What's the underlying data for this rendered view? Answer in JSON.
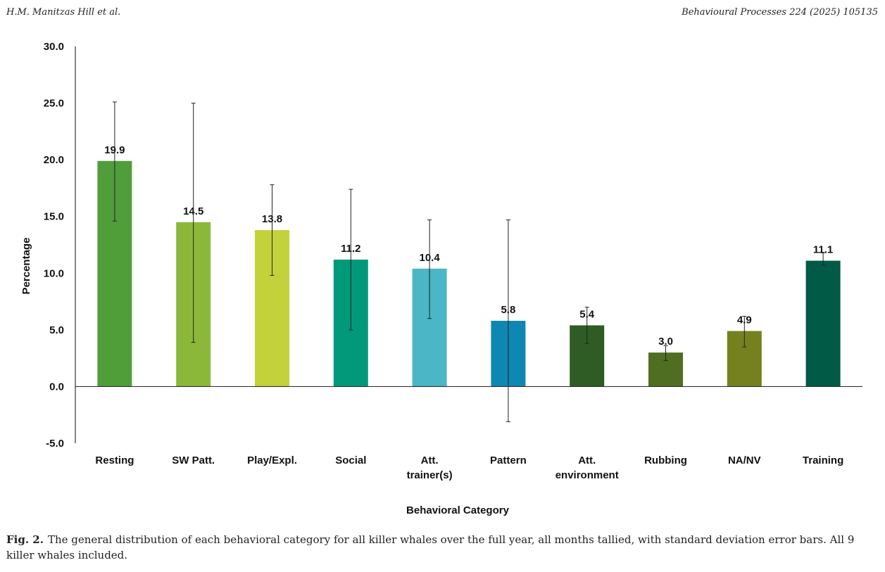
{
  "header": {
    "left": "H.M. Manitzas Hill et al.",
    "right": "Behavioural Processes 224 (2025) 105135"
  },
  "caption": {
    "label": "Fig. 2.",
    "text": "The general distribution of each behavioral category for all killer whales over the full year, all months tallied, with standard deviation error bars. All 9 killer whales included."
  },
  "chart_data": {
    "type": "bar",
    "xlabel": "Behavioral Category",
    "ylabel": "Percentage",
    "ylim": [
      -5,
      30
    ],
    "yticks": [
      "30.0",
      "25.0",
      "20.0",
      "15.0",
      "10.0",
      "5.0",
      "0.0",
      "-5.0"
    ],
    "ytick_values": [
      30,
      25,
      20,
      15,
      10,
      5,
      0,
      -5
    ],
    "grid": false,
    "categories": [
      [
        "Resting"
      ],
      [
        "SW Patt."
      ],
      [
        "Play/Expl."
      ],
      [
        "Social"
      ],
      [
        "Att.",
        "trainer(s)"
      ],
      [
        "Pattern"
      ],
      [
        "Att.",
        "environment"
      ],
      [
        "Rubbing"
      ],
      [
        "NA/NV"
      ],
      [
        "Training"
      ]
    ],
    "values": [
      19.9,
      14.5,
      13.8,
      11.2,
      10.4,
      5.8,
      5.4,
      3.0,
      4.9,
      11.1
    ],
    "value_labels": [
      "19.9",
      "14.5",
      "13.8",
      "11.2",
      "10.4",
      "5.8",
      "5.4",
      "3.0",
      "4.9",
      "11.1"
    ],
    "error_low": [
      14.6,
      3.9,
      9.8,
      5.0,
      6.0,
      -3.1,
      3.8,
      2.3,
      3.5,
      10.7
    ],
    "error_high": [
      25.1,
      25.0,
      17.8,
      17.4,
      14.7,
      14.7,
      7.0,
      3.6,
      6.2,
      11.8
    ],
    "colors": [
      "#4f9e3a",
      "#8cb83a",
      "#c3d23a",
      "#009a7a",
      "#4ab6c6",
      "#0e87b3",
      "#2f5c24",
      "#506e21",
      "#75811f",
      "#005a45"
    ]
  }
}
